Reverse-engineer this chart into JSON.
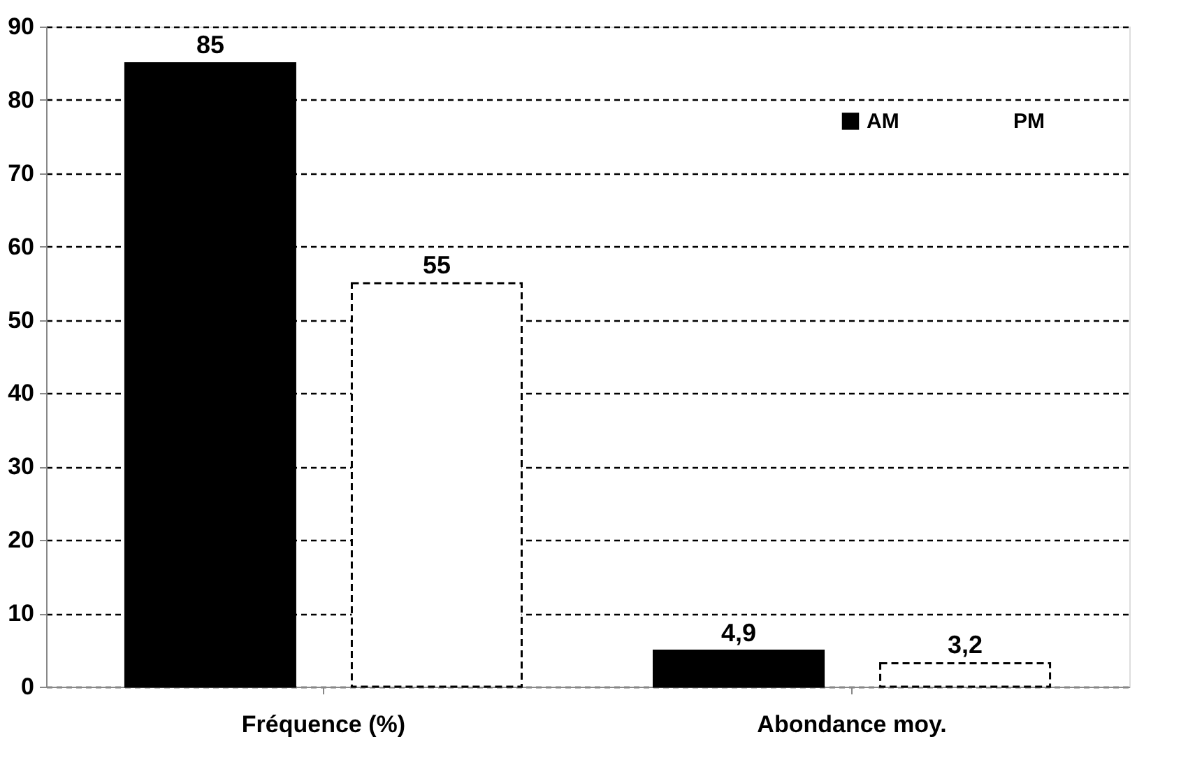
{
  "chart_data": {
    "type": "bar",
    "categories": [
      "Fréquence (%)",
      "Abondance moy."
    ],
    "series": [
      {
        "name": "AM",
        "color": "#000000",
        "line_style": "solid",
        "values": [
          85,
          4.9
        ],
        "value_labels": [
          "85",
          "4,9"
        ]
      },
      {
        "name": "PM",
        "color": "#ffffff",
        "line_style": "dashed",
        "values": [
          55,
          3.2
        ],
        "value_labels": [
          "55",
          "3,2"
        ]
      }
    ],
    "ylim": [
      0,
      90
    ],
    "yticks": [
      0,
      10,
      20,
      30,
      40,
      50,
      60,
      70,
      80,
      90
    ],
    "grid": "y",
    "legend": "top right"
  }
}
